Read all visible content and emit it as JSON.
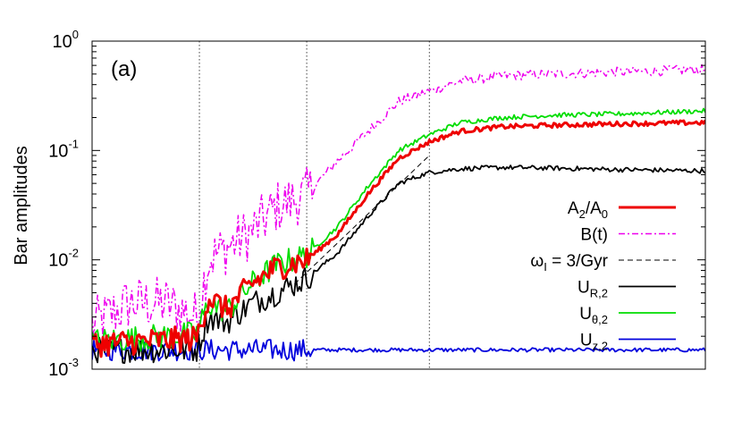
{
  "chart_data": {
    "type": "line",
    "ylabel": "Bar amplitudes",
    "yscale": "log",
    "ylim": [
      0.001,
      1
    ],
    "y_ticks": [
      {
        "base": "10",
        "exp": "0"
      },
      {
        "base": "10",
        "exp": "-1"
      },
      {
        "base": "10",
        "exp": "-2"
      },
      {
        "base": "10",
        "exp": "-3"
      }
    ],
    "xlim": [
      0,
      1
    ],
    "x_tick_labels_shown": false,
    "vertical_markers": [
      0.175,
      0.35,
      0.55
    ],
    "panel_label": "(a)",
    "grid": false,
    "legend_position": "right",
    "series": [
      {
        "key": "a2",
        "legend_main": "A",
        "legend_sub": "2",
        "legend_mid": "/A",
        "legend_sub2": "0",
        "color": "#ee0000",
        "dash": "solid",
        "width": 3,
        "noise": 0.12,
        "points": [
          [
            0,
            0.0017
          ],
          [
            0.17,
            0.0019
          ],
          [
            0.19,
            0.0045
          ],
          [
            0.22,
            0.0035
          ],
          [
            0.26,
            0.006
          ],
          [
            0.3,
            0.0085
          ],
          [
            0.35,
            0.01
          ],
          [
            0.4,
            0.017
          ],
          [
            0.45,
            0.04
          ],
          [
            0.5,
            0.085
          ],
          [
            0.55,
            0.12
          ],
          [
            0.6,
            0.15
          ],
          [
            0.67,
            0.165
          ],
          [
            0.75,
            0.17
          ],
          [
            0.85,
            0.175
          ],
          [
            1.0,
            0.18
          ]
        ]
      },
      {
        "key": "bt",
        "legend_main": "B(t)",
        "color": "#ee00ee",
        "dash": "7,3,2,3",
        "width": 1.5,
        "noise": 0.25,
        "points": [
          [
            0,
            0.0025
          ],
          [
            0.06,
            0.004
          ],
          [
            0.12,
            0.004
          ],
          [
            0.17,
            0.003
          ],
          [
            0.19,
            0.01
          ],
          [
            0.22,
            0.013
          ],
          [
            0.26,
            0.018
          ],
          [
            0.3,
            0.03
          ],
          [
            0.35,
            0.04
          ],
          [
            0.4,
            0.08
          ],
          [
            0.45,
            0.15
          ],
          [
            0.5,
            0.28
          ],
          [
            0.55,
            0.35
          ],
          [
            0.6,
            0.43
          ],
          [
            0.67,
            0.48
          ],
          [
            0.75,
            0.5
          ],
          [
            0.85,
            0.52
          ],
          [
            1.0,
            0.55
          ]
        ]
      },
      {
        "key": "fit",
        "legend_main": "ω",
        "legend_sub": "I",
        "legend_mid": " = 3/Gyr",
        "color": "#000000",
        "dash": "6,4",
        "width": 1,
        "noise": 0,
        "points": [
          [
            0.33,
            0.006
          ],
          [
            0.55,
            0.09
          ]
        ]
      },
      {
        "key": "ur",
        "legend_main": "U",
        "legend_sub": "R,2",
        "color": "#000000",
        "dash": "solid",
        "width": 1.8,
        "noise": 0.12,
        "points": [
          [
            0,
            0.0015
          ],
          [
            0.17,
            0.0015
          ],
          [
            0.19,
            0.003
          ],
          [
            0.22,
            0.0027
          ],
          [
            0.26,
            0.004
          ],
          [
            0.3,
            0.005
          ],
          [
            0.35,
            0.0068
          ],
          [
            0.4,
            0.0115
          ],
          [
            0.45,
            0.025
          ],
          [
            0.5,
            0.05
          ],
          [
            0.55,
            0.063
          ],
          [
            0.6,
            0.068
          ],
          [
            0.67,
            0.07
          ],
          [
            0.75,
            0.069
          ],
          [
            0.85,
            0.067
          ],
          [
            1.0,
            0.065
          ]
        ]
      },
      {
        "key": "ut",
        "legend_main": "U",
        "legend_sub": "θ,2",
        "color": "#00dd00",
        "dash": "solid",
        "width": 1.8,
        "noise": 0.12,
        "points": [
          [
            0,
            0.0018
          ],
          [
            0.17,
            0.0021
          ],
          [
            0.19,
            0.004
          ],
          [
            0.22,
            0.0034
          ],
          [
            0.26,
            0.006
          ],
          [
            0.3,
            0.009
          ],
          [
            0.35,
            0.011
          ],
          [
            0.4,
            0.02
          ],
          [
            0.45,
            0.047
          ],
          [
            0.5,
            0.1
          ],
          [
            0.55,
            0.14
          ],
          [
            0.6,
            0.18
          ],
          [
            0.67,
            0.2
          ],
          [
            0.75,
            0.21
          ],
          [
            0.85,
            0.215
          ],
          [
            1.0,
            0.23
          ]
        ]
      },
      {
        "key": "uz",
        "legend_main": "U",
        "legend_sub": "z,2",
        "color": "#0000dd",
        "dash": "solid",
        "width": 1.8,
        "noise": 0.1,
        "points": [
          [
            0,
            0.0015
          ],
          [
            0.5,
            0.0015
          ],
          [
            1.0,
            0.0015
          ]
        ]
      }
    ]
  }
}
